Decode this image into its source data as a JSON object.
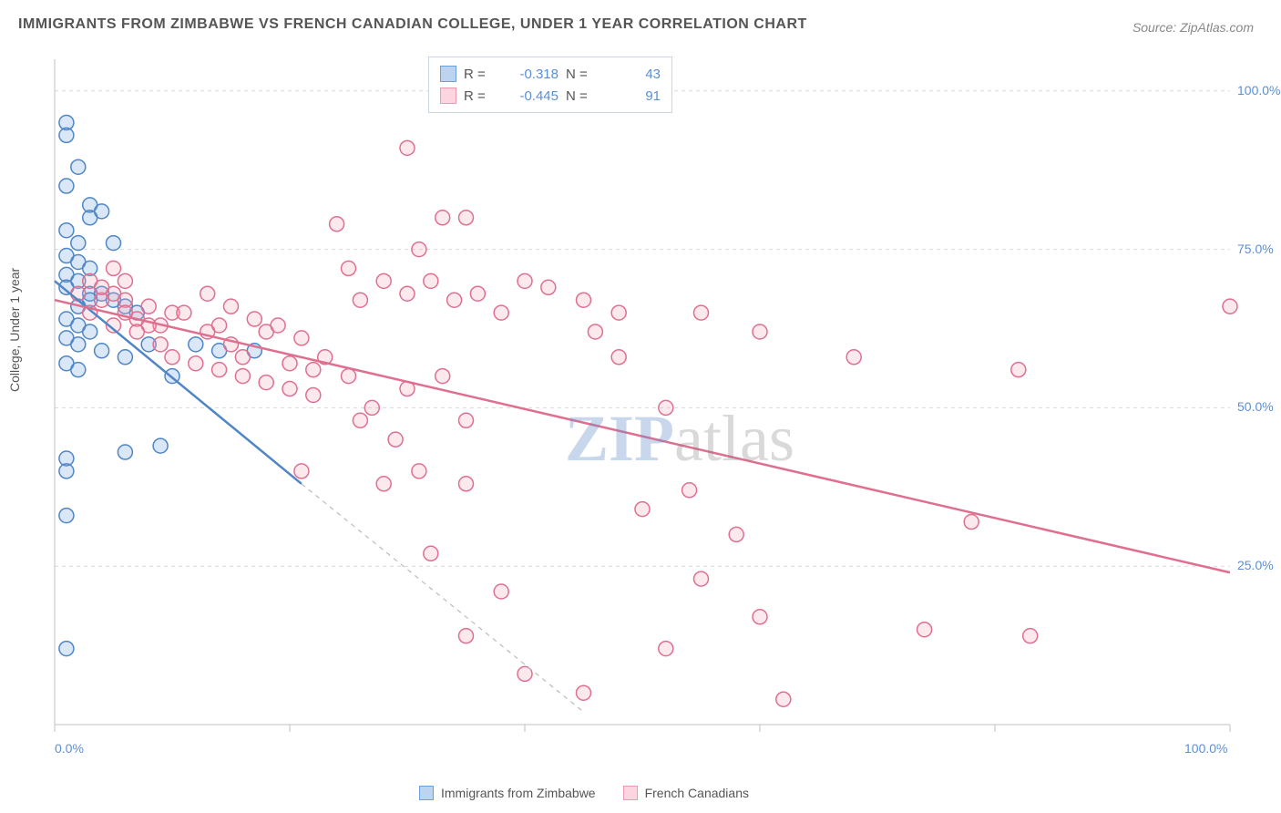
{
  "title": "IMMIGRANTS FROM ZIMBABWE VS FRENCH CANADIAN COLLEGE, UNDER 1 YEAR CORRELATION CHART",
  "source": "Source: ZipAtlas.com",
  "watermark": {
    "part1": "ZIP",
    "part2": "atlas"
  },
  "yAxisLabel": "College, Under 1 year",
  "chart": {
    "type": "scatter",
    "background_color": "#ffffff",
    "grid_color": "#d9d9d9",
    "axis_color": "#c0c0c0",
    "xlim": [
      0,
      100
    ],
    "ylim": [
      0,
      105
    ],
    "x_ticks": [
      0,
      20,
      40,
      60,
      80,
      100
    ],
    "x_tick_labels": [
      "0.0%",
      "",
      "",
      "",
      "",
      "100.0%"
    ],
    "y_ticks": [
      25,
      50,
      75,
      100
    ],
    "y_tick_labels": [
      "25.0%",
      "50.0%",
      "75.0%",
      "100.0%"
    ],
    "marker_radius": 8,
    "marker_stroke_width": 1.5,
    "marker_fill_opacity": 0.25,
    "line_width": 2.5,
    "series": [
      {
        "name": "Immigrants from Zimbabwe",
        "color": "#6b9fe0",
        "stroke": "#4f86c6",
        "R": "-0.318",
        "N": "43",
        "regression": {
          "x1": 0,
          "y1": 70,
          "x2": 21,
          "y2": 38
        },
        "regression_ext": {
          "x1": 21,
          "y1": 38,
          "x2": 45,
          "y2": 2
        },
        "points": [
          [
            1,
            95
          ],
          [
            1,
            93
          ],
          [
            2,
            88
          ],
          [
            1,
            85
          ],
          [
            3,
            82
          ],
          [
            4,
            81
          ],
          [
            3,
            80
          ],
          [
            1,
            78
          ],
          [
            2,
            76
          ],
          [
            5,
            76
          ],
          [
            1,
            74
          ],
          [
            2,
            73
          ],
          [
            3,
            72
          ],
          [
            1,
            71
          ],
          [
            2,
            70
          ],
          [
            1,
            69
          ],
          [
            3,
            68
          ],
          [
            4,
            68
          ],
          [
            5,
            67
          ],
          [
            2,
            66
          ],
          [
            6,
            66
          ],
          [
            7,
            65
          ],
          [
            1,
            64
          ],
          [
            2,
            63
          ],
          [
            3,
            62
          ],
          [
            1,
            61
          ],
          [
            2,
            60
          ],
          [
            8,
            60
          ],
          [
            4,
            59
          ],
          [
            12,
            60
          ],
          [
            6,
            58
          ],
          [
            1,
            57
          ],
          [
            2,
            56
          ],
          [
            14,
            59
          ],
          [
            10,
            55
          ],
          [
            9,
            44
          ],
          [
            6,
            43
          ],
          [
            1,
            42
          ],
          [
            1,
            40
          ],
          [
            1,
            33
          ],
          [
            1,
            12
          ],
          [
            17,
            59
          ],
          [
            3,
            67
          ]
        ]
      },
      {
        "name": "French Canadians",
        "color": "#f4a6bb",
        "stroke": "#e06f8f",
        "R": "-0.445",
        "N": "91",
        "regression": {
          "x1": 0,
          "y1": 67,
          "x2": 100,
          "y2": 24
        },
        "points": [
          [
            36,
            104
          ],
          [
            30,
            91
          ],
          [
            33,
            80
          ],
          [
            35,
            80
          ],
          [
            24,
            79
          ],
          [
            31,
            75
          ],
          [
            25,
            72
          ],
          [
            32,
            70
          ],
          [
            28,
            70
          ],
          [
            40,
            70
          ],
          [
            42,
            69
          ],
          [
            30,
            68
          ],
          [
            36,
            68
          ],
          [
            34,
            67
          ],
          [
            26,
            67
          ],
          [
            38,
            65
          ],
          [
            45,
            67
          ],
          [
            48,
            58
          ],
          [
            33,
            55
          ],
          [
            30,
            53
          ],
          [
            35,
            48
          ],
          [
            22,
            56
          ],
          [
            18,
            62
          ],
          [
            14,
            63
          ],
          [
            10,
            65
          ],
          [
            8,
            66
          ],
          [
            6,
            67
          ],
          [
            5,
            68
          ],
          [
            7,
            64
          ],
          [
            9,
            63
          ],
          [
            11,
            65
          ],
          [
            13,
            62
          ],
          [
            15,
            60
          ],
          [
            16,
            58
          ],
          [
            20,
            57
          ],
          [
            22,
            52
          ],
          [
            26,
            48
          ],
          [
            21,
            40
          ],
          [
            28,
            38
          ],
          [
            35,
            38
          ],
          [
            38,
            21
          ],
          [
            32,
            27
          ],
          [
            35,
            14
          ],
          [
            40,
            8
          ],
          [
            45,
            5
          ],
          [
            48,
            65
          ],
          [
            52,
            50
          ],
          [
            54,
            37
          ],
          [
            58,
            30
          ],
          [
            52,
            12
          ],
          [
            55,
            23
          ],
          [
            60,
            17
          ],
          [
            62,
            4
          ],
          [
            50,
            34
          ],
          [
            46,
            62
          ],
          [
            55,
            65
          ],
          [
            60,
            62
          ],
          [
            68,
            58
          ],
          [
            82,
            56
          ],
          [
            78,
            32
          ],
          [
            74,
            15
          ],
          [
            83,
            14
          ],
          [
            100,
            66
          ],
          [
            3,
            70
          ],
          [
            5,
            72
          ],
          [
            4,
            67
          ],
          [
            6,
            65
          ],
          [
            8,
            63
          ],
          [
            9,
            60
          ],
          [
            10,
            58
          ],
          [
            12,
            57
          ],
          [
            14,
            56
          ],
          [
            16,
            55
          ],
          [
            18,
            54
          ],
          [
            20,
            53
          ],
          [
            3,
            65
          ],
          [
            5,
            63
          ],
          [
            7,
            62
          ],
          [
            13,
            68
          ],
          [
            15,
            66
          ],
          [
            17,
            64
          ],
          [
            19,
            63
          ],
          [
            21,
            61
          ],
          [
            23,
            58
          ],
          [
            25,
            55
          ],
          [
            27,
            50
          ],
          [
            29,
            45
          ],
          [
            31,
            40
          ],
          [
            2,
            68
          ],
          [
            4,
            69
          ],
          [
            6,
            70
          ]
        ]
      }
    ]
  },
  "legend_top": {
    "r_label": "R =",
    "n_label": "N ="
  },
  "legend_bottom": [
    {
      "label": "Immigrants from Zimbabwe",
      "fill": "#bcd4f0",
      "stroke": "#6b9fe0"
    },
    {
      "label": "French Canadians",
      "fill": "#fcd5e0",
      "stroke": "#f099b3"
    }
  ]
}
